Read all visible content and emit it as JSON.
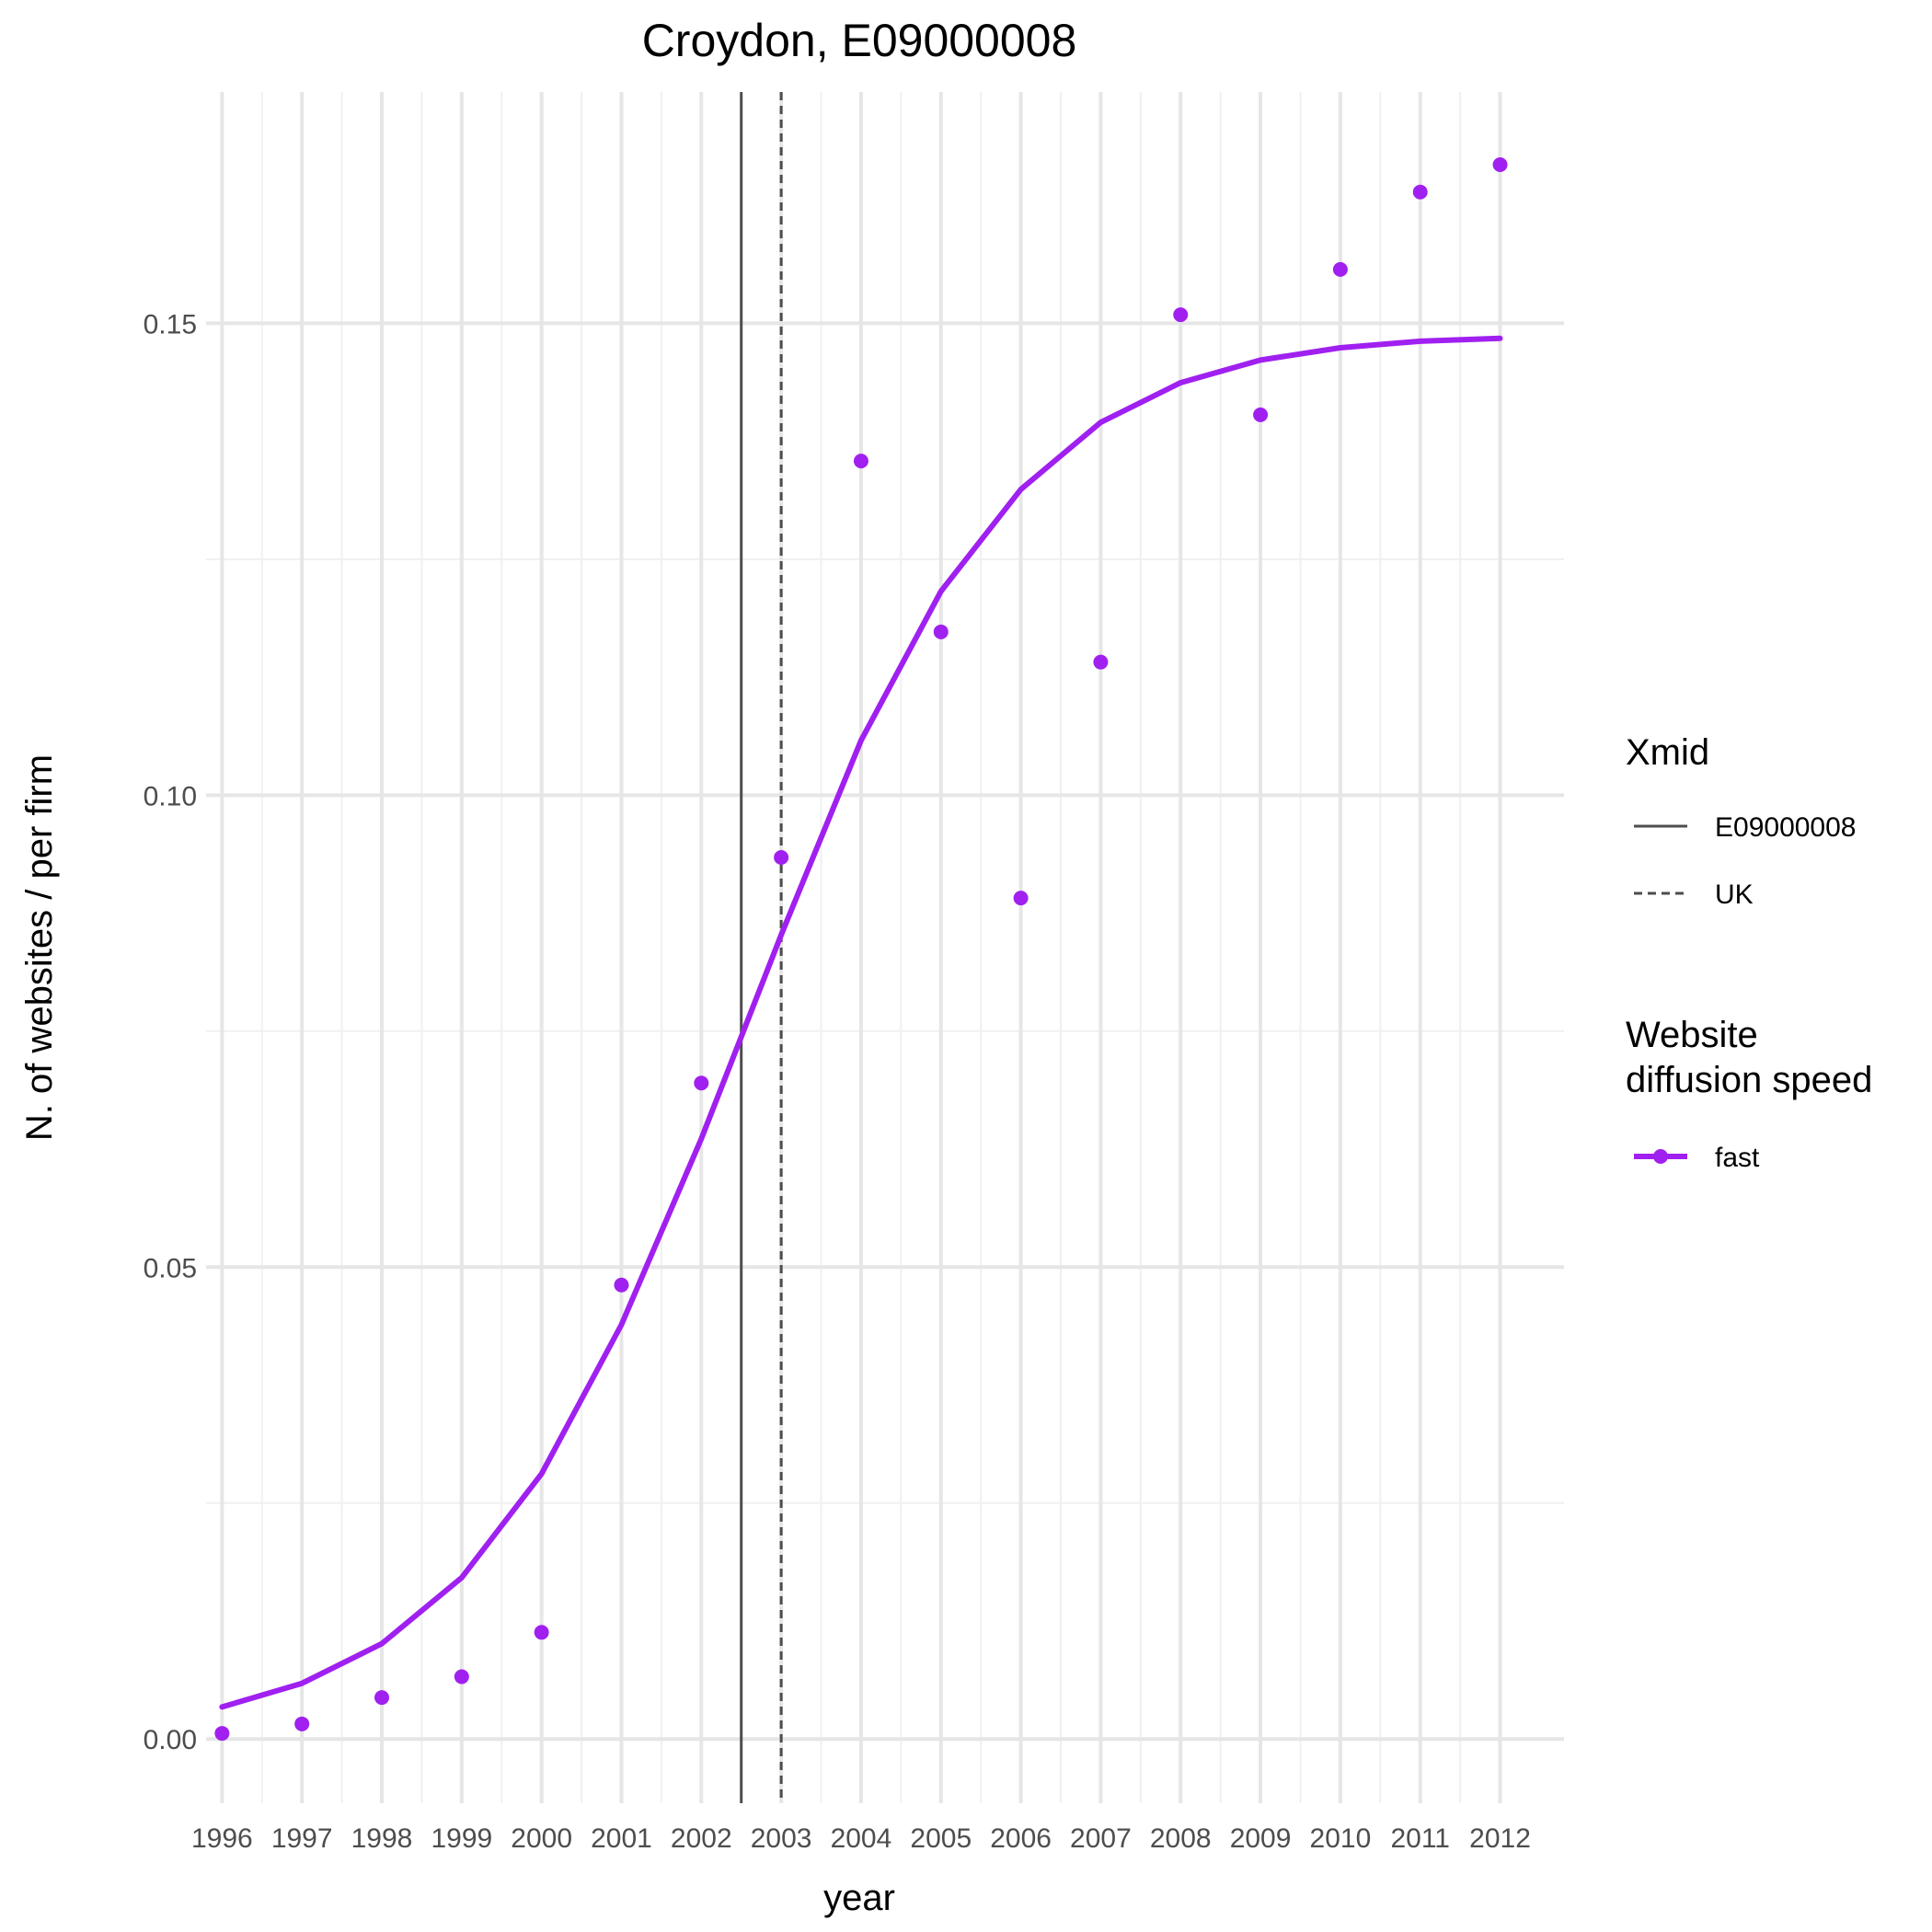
{
  "chart_data": {
    "type": "line",
    "title": "Croydon, E09000008",
    "xlabel": "year",
    "ylabel": "N. of websites / per firm",
    "x": [
      1996,
      1997,
      1998,
      1999,
      2000,
      2001,
      2002,
      2003,
      2004,
      2005,
      2006,
      2007,
      2008,
      2009,
      2010,
      2011,
      2012
    ],
    "x_tick_labels": [
      "1996",
      "1997",
      "1998",
      "1999",
      "2000",
      "2001",
      "2002",
      "2003",
      "2004",
      "2005",
      "2006",
      "2007",
      "2008",
      "2009",
      "2010",
      "2011",
      "2012"
    ],
    "y_ticks": [
      0.0,
      0.05,
      0.1,
      0.15
    ],
    "y_tick_labels": [
      "0.00",
      "0.05",
      "0.10",
      "0.15"
    ],
    "xlim": [
      1995.8,
      2012.8
    ],
    "ylim": [
      -0.0068,
      0.1745
    ],
    "grid": true,
    "series": [
      {
        "name": "fast",
        "color": "#a020f0",
        "points": [
          0.0006,
          0.0016,
          0.0044,
          0.0066,
          0.0113,
          0.0481,
          0.0695,
          0.0934,
          0.1354,
          0.1173,
          0.0891,
          0.1141,
          0.1509,
          0.1403,
          0.1557,
          0.1639,
          0.1668
        ],
        "fitted": [
          0.0034,
          0.0059,
          0.0101,
          0.0171,
          0.0281,
          0.0439,
          0.0636,
          0.0852,
          0.1058,
          0.1216,
          0.1324,
          0.1395,
          0.1437,
          0.1461,
          0.1474,
          0.1481,
          0.1484
        ]
      }
    ],
    "vlines": [
      {
        "name": "E09000008",
        "x": 2002.5,
        "style": "solid",
        "color": "#4d4d4d"
      },
      {
        "name": "UK",
        "x": 2003.0,
        "style": "dashed",
        "color": "#4d4d4d"
      }
    ],
    "legend": {
      "placement": "right",
      "groups": [
        {
          "title": [
            "Xmid"
          ],
          "entries": [
            "E09000008",
            "UK"
          ]
        },
        {
          "title": [
            "Website",
            "diffusion speed"
          ],
          "entries": [
            "fast"
          ]
        }
      ]
    }
  }
}
